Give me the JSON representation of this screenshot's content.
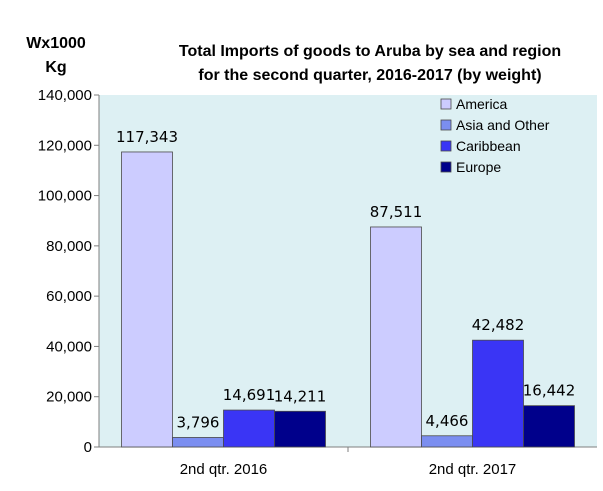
{
  "chart_data": {
    "type": "bar",
    "title_lines": [
      "Total Imports of goods to Aruba by sea and region",
      "for the second quarter, 2016-2017 (by weight)"
    ],
    "ylabel_lines": [
      "Wx1000",
      "Kg"
    ],
    "xlabel": "",
    "categories": [
      "2nd qtr. 2016",
      "2nd qtr. 2017"
    ],
    "series": [
      {
        "name": "America",
        "values": [
          117343,
          87511
        ],
        "labels": [
          "117,343",
          "87,511"
        ],
        "color": "#ccccff"
      },
      {
        "name": "Asia and Other",
        "values": [
          3796,
          4466
        ],
        "labels": [
          "3,796",
          "4,466"
        ],
        "color": "#7b8ef0"
      },
      {
        "name": "Caribbean",
        "values": [
          14691,
          42482
        ],
        "labels": [
          "14,691",
          "42,482"
        ],
        "color": "#3a35f5"
      },
      {
        "name": "Europe",
        "values": [
          14211,
          16442
        ],
        "labels": [
          "14,211",
          "16,442"
        ],
        "color": "#00008b"
      }
    ],
    "ylim": [
      0,
      140000
    ],
    "yticks": [
      0,
      20000,
      40000,
      60000,
      80000,
      100000,
      120000,
      140000
    ],
    "ytick_labels": [
      "0",
      "20,000",
      "40,000",
      "60,000",
      "80,000",
      "100,000",
      "120,000",
      "140,000"
    ],
    "grid": false,
    "legend_position": "top-right",
    "plot_background": "#ddf0f3"
  }
}
